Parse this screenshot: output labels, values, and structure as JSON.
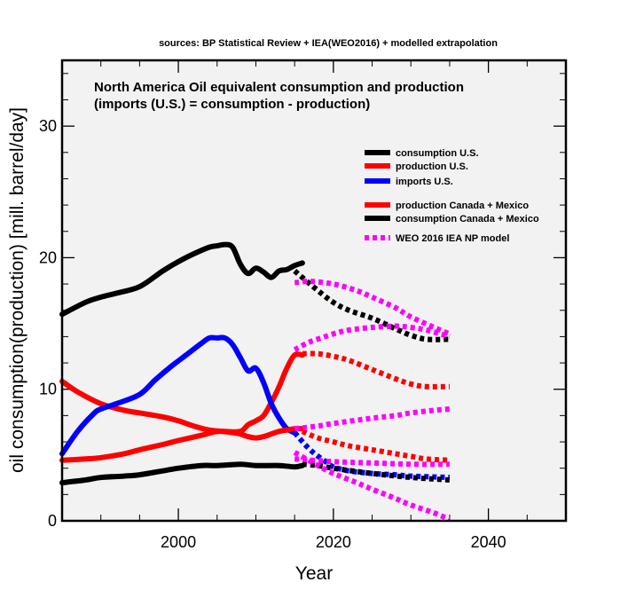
{
  "chart_data": {
    "type": "line",
    "source_note": "sources: BP Statistical Review + IEA(WEO2016) + modelled extrapolation",
    "title_line1": "North America Oil equivalent consumption and production",
    "title_line2": "(imports (U.S.) = consumption - production)",
    "xlabel": "Year",
    "ylabel": "oil consumption(production) [mill. barrel/day]",
    "xlim": [
      1985,
      2050
    ],
    "ylim": [
      0,
      35
    ],
    "x_ticks": [
      2000,
      2020,
      2040
    ],
    "y_ticks": [
      0,
      10,
      20,
      30
    ],
    "legend": [
      {
        "label": "consumption U.S.",
        "color": "#000000",
        "style": "solid"
      },
      {
        "label": "production U.S.",
        "color": "#ff0000",
        "style": "solid"
      },
      {
        "label": "imports U.S.",
        "color": "#0000ff",
        "style": "solid"
      },
      {
        "label": "production Canada + Mexico",
        "color": "#ff0000",
        "style": "solid"
      },
      {
        "label": "consumption Canada + Mexico",
        "color": "#000000",
        "style": "solid"
      },
      {
        "label": "WEO 2016 IEA NP model",
        "color": "#ff00ff",
        "style": "dotted"
      }
    ],
    "series": [
      {
        "name": "consumption U.S. (historical)",
        "color": "#000000",
        "style": "solid",
        "x": [
          1985,
          1988,
          1990,
          1992,
          1995,
          1998,
          2000,
          2002,
          2004,
          2005,
          2006,
          2007,
          2008,
          2009,
          2010,
          2011,
          2012,
          2013,
          2014,
          2015,
          2016
        ],
        "values": [
          15.7,
          16.6,
          17.0,
          17.3,
          17.8,
          19.0,
          19.7,
          20.3,
          20.8,
          20.9,
          21.0,
          20.8,
          19.5,
          18.8,
          19.2,
          18.9,
          18.5,
          19.0,
          19.1,
          19.4,
          19.6
        ]
      },
      {
        "name": "consumption U.S. (extrapolation)",
        "color": "#000000",
        "style": "dotted",
        "x": [
          2015,
          2018,
          2020,
          2022,
          2025,
          2028,
          2030,
          2032,
          2035
        ],
        "values": [
          19.0,
          17.5,
          16.6,
          16.0,
          15.4,
          14.6,
          14.1,
          13.8,
          13.8
        ]
      },
      {
        "name": "production U.S. (historical)",
        "color": "#ff0000",
        "style": "solid",
        "x": [
          1985,
          1987,
          1990,
          1993,
          1995,
          1998,
          2000,
          2002,
          2004,
          2006,
          2008,
          2009,
          2010,
          2011,
          2012,
          2013,
          2014,
          2015,
          2016
        ],
        "values": [
          10.6,
          9.8,
          8.9,
          8.4,
          8.2,
          7.9,
          7.6,
          7.2,
          6.9,
          6.8,
          6.8,
          7.3,
          7.6,
          8.0,
          9.0,
          10.2,
          11.6,
          12.6,
          12.6
        ]
      },
      {
        "name": "production U.S. (extrapolation)",
        "color": "#ff0000",
        "style": "dotted",
        "x": [
          2016,
          2018,
          2020,
          2022,
          2025,
          2028,
          2030,
          2032,
          2035
        ],
        "values": [
          12.7,
          12.7,
          12.5,
          12.2,
          11.5,
          10.8,
          10.4,
          10.2,
          10.2
        ]
      },
      {
        "name": "imports U.S. (historical)",
        "color": "#0000ff",
        "style": "solid",
        "x": [
          1985,
          1987,
          1989,
          1990,
          1992,
          1995,
          1997,
          1999,
          2001,
          2003,
          2004,
          2005,
          2006,
          2007,
          2008,
          2009,
          2010,
          2011,
          2012,
          2013,
          2014,
          2015
        ],
        "values": [
          5.1,
          6.8,
          8.1,
          8.5,
          8.9,
          9.6,
          10.7,
          11.7,
          12.6,
          13.5,
          13.9,
          13.9,
          13.9,
          13.4,
          12.4,
          11.4,
          11.6,
          10.5,
          8.9,
          7.8,
          7.0,
          6.7
        ]
      },
      {
        "name": "imports U.S. (extrapolation)",
        "color": "#0000ff",
        "style": "dotted",
        "x": [
          2015,
          2017,
          2019,
          2020,
          2022,
          2025,
          2028,
          2030,
          2035
        ],
        "values": [
          6.7,
          5.4,
          4.5,
          4.1,
          3.8,
          3.6,
          3.5,
          3.4,
          3.3
        ]
      },
      {
        "name": "production Canada + Mexico (historical)",
        "color": "#ff0000",
        "style": "solid",
        "x": [
          1985,
          1988,
          1990,
          1993,
          1995,
          1998,
          2000,
          2003,
          2005,
          2007,
          2008,
          2009,
          2010,
          2011,
          2012,
          2013,
          2014,
          2015,
          2016
        ],
        "values": [
          4.6,
          4.7,
          4.8,
          5.1,
          5.4,
          5.8,
          6.1,
          6.5,
          6.8,
          6.7,
          6.6,
          6.4,
          6.3,
          6.4,
          6.6,
          6.8,
          6.9,
          7.0,
          7.0
        ]
      },
      {
        "name": "production Canada + Mexico (extrapolation)",
        "color": "#ff0000",
        "style": "dotted",
        "x": [
          2016,
          2018,
          2020,
          2022,
          2025,
          2028,
          2030,
          2032,
          2035
        ],
        "values": [
          6.8,
          6.3,
          6.0,
          5.7,
          5.4,
          5.1,
          4.9,
          4.7,
          4.6
        ]
      },
      {
        "name": "consumption Canada + Mexico (historical)",
        "color": "#000000",
        "style": "solid",
        "x": [
          1985,
          1988,
          1990,
          1993,
          1995,
          1998,
          2000,
          2003,
          2005,
          2008,
          2010,
          2013,
          2015,
          2016
        ],
        "values": [
          2.9,
          3.1,
          3.3,
          3.4,
          3.5,
          3.8,
          4.0,
          4.2,
          4.2,
          4.3,
          4.2,
          4.2,
          4.1,
          4.2
        ]
      },
      {
        "name": "consumption Canada + Mexico (extrapolation)",
        "color": "#000000",
        "style": "dotted",
        "x": [
          2016,
          2018,
          2020,
          2025,
          2030,
          2035
        ],
        "values": [
          4.3,
          4.2,
          4.0,
          3.6,
          3.3,
          3.1
        ]
      },
      {
        "name": "WEO 2016 IEA NP model (U.S. consumption)",
        "color": "#ff00ff",
        "style": "dotted",
        "x": [
          2015,
          2017,
          2020,
          2023,
          2025,
          2028,
          2030,
          2033,
          2035
        ],
        "values": [
          18.1,
          18.2,
          18.0,
          17.5,
          17.0,
          16.2,
          15.5,
          14.7,
          14.2
        ]
      },
      {
        "name": "WEO 2016 IEA NP model (U.S. production)",
        "color": "#ff00ff",
        "style": "dotted",
        "x": [
          2015,
          2017,
          2020,
          2022,
          2025,
          2028,
          2030,
          2032,
          2035
        ],
        "values": [
          13.0,
          13.6,
          14.2,
          14.5,
          14.7,
          14.8,
          14.7,
          14.5,
          14.0
        ]
      },
      {
        "name": "WEO 2016 IEA NP model (Canada + Mexico production)",
        "color": "#ff00ff",
        "style": "dotted",
        "x": [
          2015,
          2018,
          2020,
          2025,
          2028,
          2030,
          2033,
          2035
        ],
        "values": [
          7.0,
          7.2,
          7.4,
          7.8,
          8.0,
          8.2,
          8.4,
          8.5
        ]
      },
      {
        "name": "WEO 2016 IEA NP model (U.S. imports)",
        "color": "#ff00ff",
        "style": "dotted",
        "x": [
          2015,
          2018,
          2020,
          2023,
          2025,
          2028,
          2030,
          2033,
          2035
        ],
        "values": [
          5.2,
          4.2,
          3.6,
          2.9,
          2.4,
          1.7,
          1.2,
          0.6,
          0.1
        ]
      },
      {
        "name": "WEO 2016 IEA NP model (Canada + Mexico consumption)",
        "color": "#ff00ff",
        "style": "dotted",
        "x": [
          2015,
          2020,
          2025,
          2030,
          2035
        ],
        "values": [
          4.7,
          4.5,
          4.4,
          4.3,
          4.3
        ]
      }
    ]
  }
}
